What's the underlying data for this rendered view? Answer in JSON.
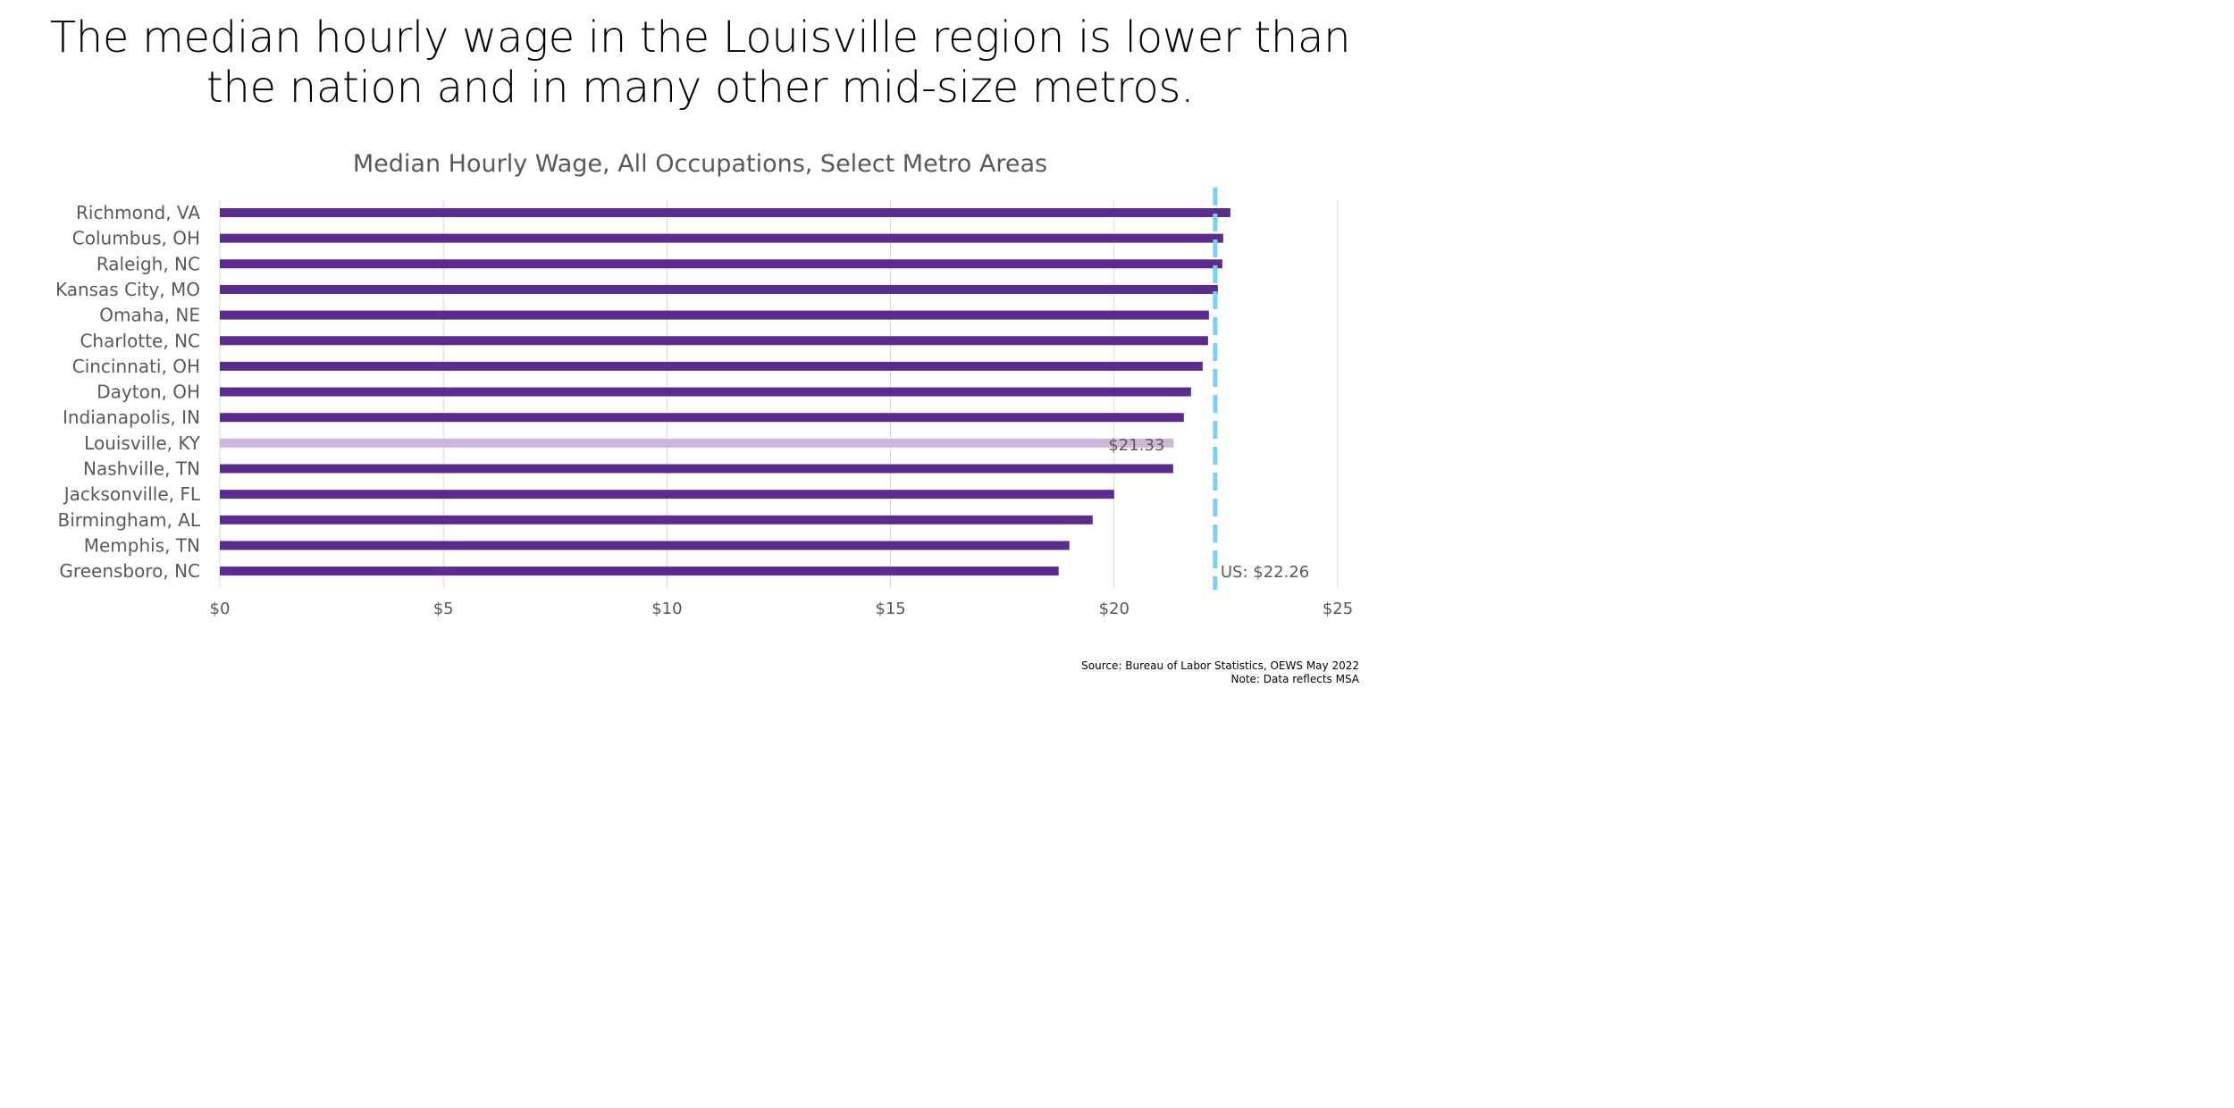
{
  "headline": {
    "line1": "The median hourly wage in the Louisville region is lower than",
    "line2": "the nation and in many other mid-size metros."
  },
  "chart_data": {
    "type": "bar",
    "orientation": "horizontal",
    "title": "Median Hourly Wage, All Occupations, Select Metro Areas",
    "categories": [
      "Richmond, VA",
      "Columbus, OH",
      "Raleigh, NC",
      "Kansas City, MO",
      "Omaha, NE",
      "Charlotte, NC",
      "Cincinnati, OH",
      "Dayton, OH",
      "Indianapolis, IN",
      "Louisville, KY",
      "Nashville, TN",
      "Jacksonville, FL",
      "Birmingham, AL",
      "Memphis, TN",
      "Greensboro, NC"
    ],
    "values": [
      22.6,
      22.44,
      22.42,
      22.32,
      22.12,
      22.1,
      21.98,
      21.72,
      21.56,
      21.33,
      21.32,
      20.0,
      19.52,
      19.0,
      18.76
    ],
    "highlight": {
      "category": "Louisville, KY",
      "label": "$21.33",
      "color": "#cbb8d9"
    },
    "bar_color": "#5b2c8e",
    "reference_line": {
      "value": 22.26,
      "label": "US: $22.26",
      "color": "#7ad0f2",
      "style": "dashed"
    },
    "xlim": [
      0,
      25
    ],
    "x_ticks": [
      0,
      5,
      10,
      15,
      20,
      25
    ],
    "x_tick_labels": [
      "$0",
      "$5",
      "$10",
      "$15",
      "$20",
      "$25"
    ],
    "grid": true,
    "legend": false
  },
  "source": {
    "line1": "Source: Bureau of Labor Statistics, OEWS May 2022",
    "line2": "Note: Data reflects MSA"
  }
}
